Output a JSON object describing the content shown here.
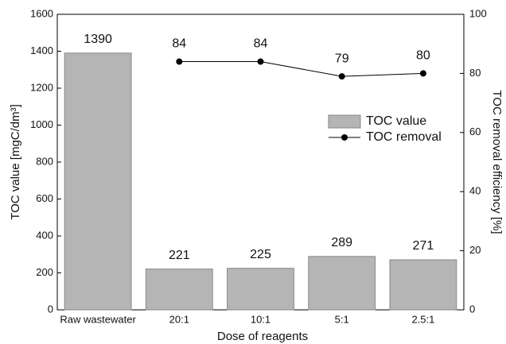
{
  "chart_data": {
    "type": "bar",
    "x_label": "Dose of reagents",
    "y_label": "TOC value [mgC/dm³]",
    "y2_label": "TOC removal efficiency [%]",
    "categories": [
      "Raw wastewater",
      "20:1",
      "10:1",
      "5:1",
      "2.5:1"
    ],
    "series": [
      {
        "name": "TOC value",
        "type": "bar",
        "color": "#b5b5b5",
        "values": [
          1390,
          221,
          225,
          289,
          271
        ]
      },
      {
        "name": "TOC removal",
        "type": "line",
        "axis": "y2",
        "color": "#000000",
        "values": [
          null,
          84,
          84,
          79,
          80
        ]
      }
    ],
    "ylim": [
      0,
      1600
    ],
    "yticks": [
      0,
      200,
      400,
      600,
      800,
      1000,
      1200,
      1400,
      1600
    ],
    "y2lim": [
      0,
      100
    ],
    "y2ticks": [
      0,
      20,
      40,
      60,
      80,
      100
    ],
    "legend": "center-right"
  }
}
